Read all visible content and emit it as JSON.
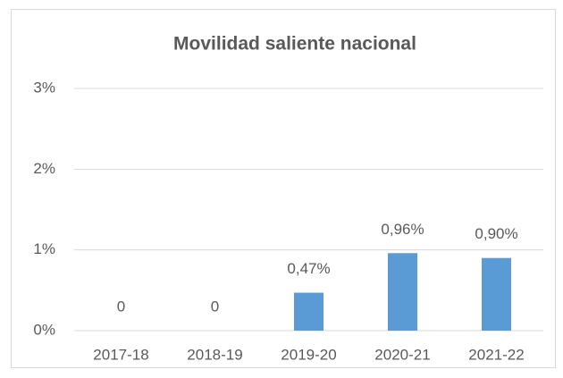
{
  "chart_data": {
    "type": "bar",
    "title": "Movilidad saliente nacional",
    "categories": [
      "2017-18",
      "2018-19",
      "2019-20",
      "2020-21",
      "2021-22"
    ],
    "values": [
      0,
      0,
      0.47,
      0.96,
      0.9
    ],
    "value_labels": [
      "0",
      "0",
      "0,47%",
      "0,96%",
      "0,90%"
    ],
    "color": "#5b9bd5",
    "ylim": [
      0,
      3
    ],
    "yticks": [
      {
        "value": 0,
        "label": "0%"
      },
      {
        "value": 1,
        "label": "1%"
      },
      {
        "value": 2,
        "label": "2%"
      },
      {
        "value": 3,
        "label": "3%"
      }
    ],
    "grid": true
  }
}
